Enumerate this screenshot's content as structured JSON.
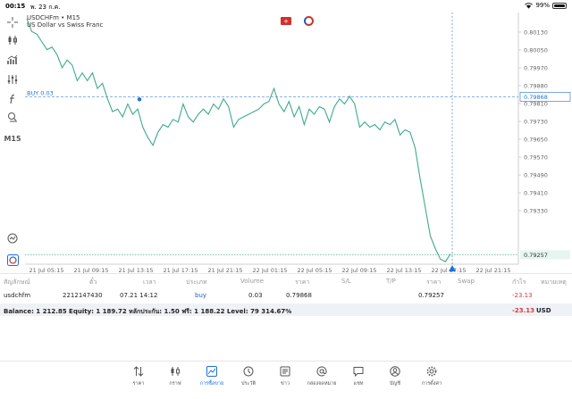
{
  "status_bar": {
    "time": "00:15",
    "date": "พ. 23 ก.ค.",
    "battery": "99%"
  },
  "chart": {
    "symbol": "USDCHFm • M15",
    "description": "US Dollar vs Swiss Franc",
    "timeframe": "M15",
    "buy_label": "BUY 0.03",
    "buy_price": "0.79868",
    "current_price": "0.79257",
    "y_ticks": [
      "0.80130",
      "0.80050",
      "0.79970",
      "0.79880",
      "0.79810",
      "0.79730",
      "0.79650",
      "0.79570",
      "0.79490",
      "0.79410",
      "0.79330"
    ],
    "x_ticks": [
      "21 Jul 05:15",
      "21 Jul 09:15",
      "21 Jul 13:15",
      "21 Jul 17:15",
      "21 Jul 21:15",
      "22 Jul 01:15",
      "22 Jul 05:15",
      "22 Jul 09:15",
      "22 Jul 13:15",
      "22 Jul 17:15",
      "22 Jul 21:15"
    ],
    "line_color": "#3daa8c",
    "buy_color": "#1e6fd9"
  },
  "chart_data": {
    "type": "line",
    "title": "USDCHFm • M15",
    "xlabel": "",
    "ylabel": "",
    "ylim": [
      0.7922,
      0.8018
    ],
    "series": [
      {
        "values": [
          0.8017,
          0.8012,
          0.8011,
          0.8008,
          0.8005,
          0.8006,
          0.8003,
          0.7998,
          0.8001,
          0.7999,
          0.7993,
          0.7996,
          0.7993,
          0.7996,
          0.799,
          0.7992,
          0.7986,
          0.7981,
          0.7982,
          0.7979,
          0.7984,
          0.798,
          0.7982,
          0.7975,
          0.7971,
          0.7968,
          0.7973,
          0.7976,
          0.7975,
          0.7978,
          0.7977,
          0.7984,
          0.7979,
          0.7977,
          0.798,
          0.7982,
          0.798,
          0.7984,
          0.7982,
          0.7986,
          0.7983,
          0.7975,
          0.7978,
          0.7979,
          0.798,
          0.7981,
          0.7982,
          0.7984,
          0.7985,
          0.799,
          0.7984,
          0.7981,
          0.7985,
          0.7979,
          0.7983,
          0.7976,
          0.7982,
          0.798,
          0.7983,
          0.7982,
          0.7977,
          0.7983,
          0.7986,
          0.7984,
          0.7987,
          0.7984,
          0.7975,
          0.7977,
          0.7975,
          0.7976,
          0.7974,
          0.7977,
          0.7976,
          0.7978,
          0.7972,
          0.7974,
          0.7973,
          0.7967,
          0.7955,
          0.7944,
          0.7933,
          0.7928,
          0.7924,
          0.7923,
          0.7926
        ]
      }
    ]
  },
  "table": {
    "headers": [
      "สัญลักษณ์",
      "ตั๋ว",
      "เวลา",
      "ประเภท",
      "Volume",
      "ราคา",
      "S/L",
      "T/P",
      "ราคา",
      "Swap",
      "กำไร",
      "หมายเหตุ"
    ],
    "row": {
      "symbol": "usdchfm",
      "ticket": "2212147430",
      "time": "07.21 14:12",
      "type": "buy",
      "volume": "0.03",
      "open_price": "0.79868",
      "current_price": "0.79257",
      "profit": "-23.13"
    },
    "balance_text": "Balance: 1 212.85 Equity: 1 189.72 หลักประกัน: 1.50 ฟรี: 1 188.22 Level: 79 314.67%",
    "total_profit": "-23.13",
    "currency": "USD"
  },
  "nav": [
    {
      "label": "ราคา",
      "icon": "arrows-updown-icon"
    },
    {
      "label": "กราฟ",
      "icon": "candles-icon"
    },
    {
      "label": "การซื้อขาย",
      "icon": "trade-chart-icon"
    },
    {
      "label": "ประวัติ",
      "icon": "history-icon"
    },
    {
      "label": "ข่าว",
      "icon": "news-icon"
    },
    {
      "label": "กล่องจดหมาย",
      "icon": "mail-icon"
    },
    {
      "label": "แชท",
      "icon": "chat-icon"
    },
    {
      "label": "บัญชี",
      "icon": "account-icon"
    },
    {
      "label": "การตั้งค่า",
      "icon": "settings-icon"
    }
  ]
}
